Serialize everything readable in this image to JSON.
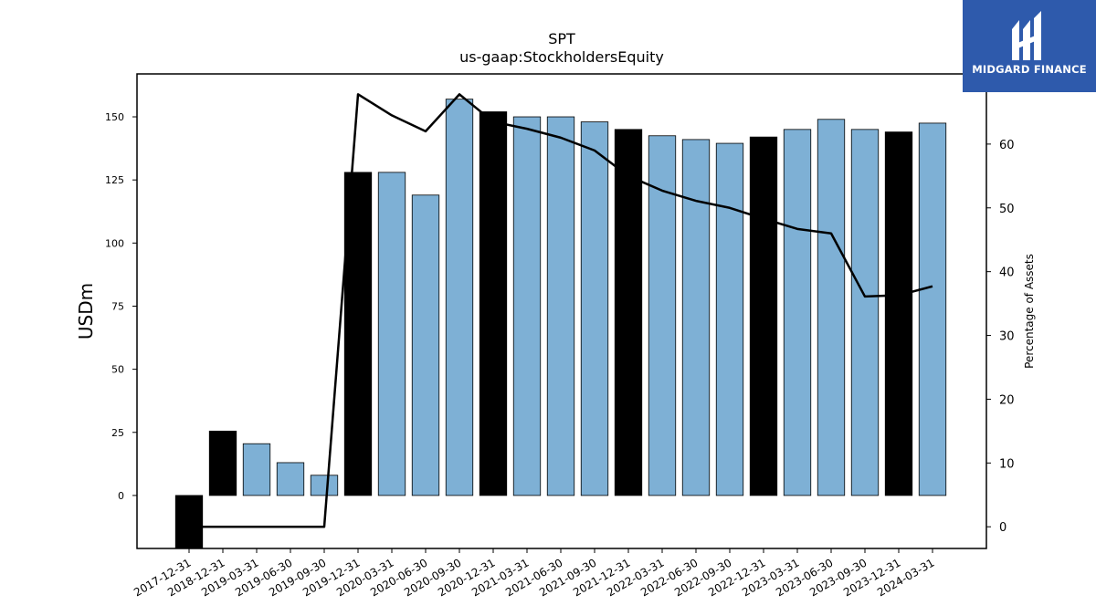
{
  "chart_data": {
    "type": "bar",
    "title": "SPT",
    "subtitle": "us-gaap:StockholdersEquity",
    "ylabel": "USDm",
    "y2label": "Percentage of Assets",
    "ylim": [
      -21,
      167
    ],
    "y2lim": [
      -3.4,
      71
    ],
    "yticks": [
      0,
      25,
      50,
      75,
      100,
      125,
      150
    ],
    "y2ticks": [
      0,
      10,
      20,
      30,
      40,
      50,
      60
    ],
    "categories": [
      "2017-12-31",
      "2018-12-31",
      "2019-03-31",
      "2019-06-30",
      "2019-09-30",
      "2019-12-31",
      "2020-03-31",
      "2020-06-30",
      "2020-09-30",
      "2020-12-31",
      "2021-03-31",
      "2021-06-30",
      "2021-09-30",
      "2021-12-31",
      "2022-03-31",
      "2022-06-30",
      "2022-09-30",
      "2022-12-31",
      "2023-03-31",
      "2023-06-30",
      "2023-09-30",
      "2023-12-31",
      "2024-03-31"
    ],
    "values": [
      -23,
      25.5,
      20.5,
      13,
      8,
      128,
      128,
      119,
      157,
      152,
      150,
      150,
      148,
      145,
      142.5,
      141,
      139.5,
      142,
      145,
      149,
      145,
      144,
      147.5
    ],
    "highlight": [
      true,
      true,
      false,
      false,
      false,
      true,
      false,
      false,
      false,
      true,
      false,
      false,
      false,
      true,
      false,
      false,
      false,
      true,
      false,
      false,
      false,
      true,
      false
    ],
    "line_series": {
      "values": [
        0,
        0,
        0,
        0,
        0,
        67.8,
        64.5,
        62,
        67.8,
        63.5,
        62.4,
        61,
        59,
        55,
        52.7,
        51.1,
        50,
        48.3,
        46.7,
        46,
        36.1,
        36.3,
        37.7
      ]
    },
    "colors": {
      "bar": "#7eb0d5",
      "highlight_bar": "#000000",
      "line": "#000000"
    },
    "grid": false
  },
  "logo": {
    "text": "MIDGARD FINANCE"
  }
}
